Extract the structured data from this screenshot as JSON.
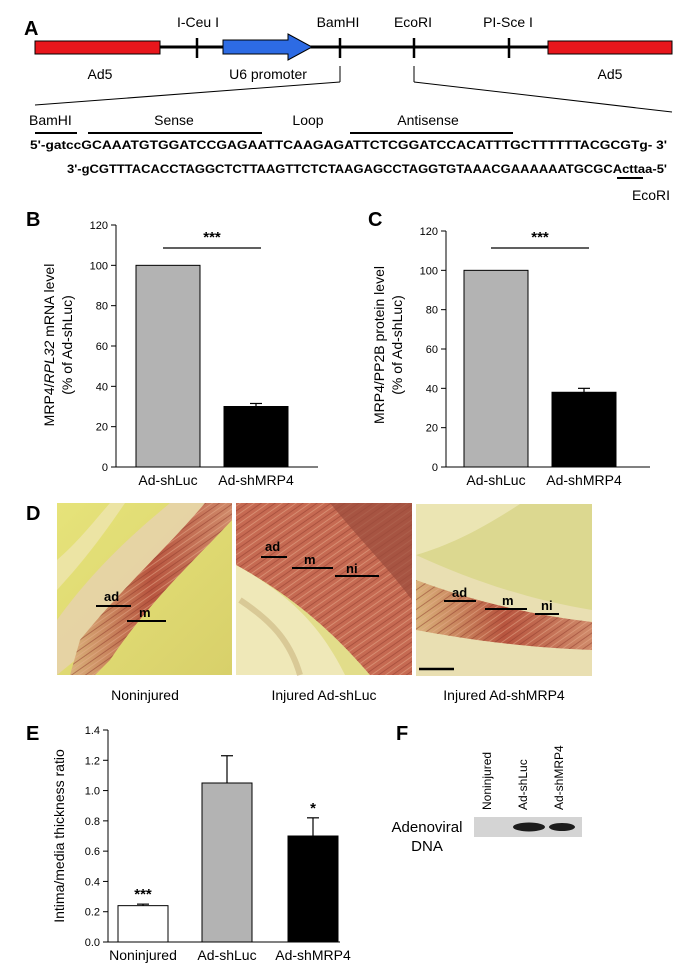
{
  "panels": {
    "a": "A",
    "b": "B",
    "c": "C",
    "d": "D",
    "e": "E",
    "f": "F"
  },
  "construct": {
    "ad5_left": "Ad5",
    "ad5_right": "Ad5",
    "promoter": "U6 promoter",
    "sites": [
      "I-Ceu I",
      "BamHI",
      "EcoRI",
      "PI-Sce I"
    ],
    "colors": {
      "ad5": "#e8161c",
      "promoter": "#2d6be4"
    }
  },
  "insert": {
    "bamhi": "BamHI",
    "sense": "Sense",
    "loop": "Loop",
    "antisense": "Antisense",
    "top_strand": "5'-gatccGCAAATGTGGATCCGAGAATTCAAGAGATTCTCGGATCCACATTTGCTTTTTTACGCGTg- 3'",
    "bottom_prefix": "3'-gCGTTTACACCTAGGCTCTTAAGTTCTCTAAGAGCCTAGGTGTAAACGAAAAAATGCGCA",
    "bottom_site": "cttaa",
    "bottom_suffix": "-5'",
    "ecori": "EcoRI"
  },
  "chart_data": [
    {
      "id": "B",
      "type": "bar",
      "categories": [
        "Ad-shLuc",
        "Ad-shMRP4"
      ],
      "values": [
        100,
        30
      ],
      "errors": [
        0,
        1.5
      ],
      "colors": [
        "#b3b3b3",
        "#000000"
      ],
      "ylabel_line1_a": "MRP4/",
      "ylabel_line1_b": "RPL32",
      "ylabel_line1_c": " mRNA level",
      "ylabel_line2": "(% of Ad-shLuc)",
      "ylim": [
        0,
        120
      ],
      "yticks": [
        "0",
        "20",
        "40",
        "60",
        "80",
        "100",
        "120"
      ],
      "significance": "***"
    },
    {
      "id": "C",
      "type": "bar",
      "categories": [
        "Ad-shLuc",
        "Ad-shMRP4"
      ],
      "values": [
        100,
        38
      ],
      "errors": [
        0,
        2
      ],
      "colors": [
        "#b3b3b3",
        "#000000"
      ],
      "ylabel_line1": "MRP4/PP2B protein level",
      "ylabel_line2": "(% of Ad-shLuc)",
      "ylim": [
        0,
        120
      ],
      "yticks": [
        "0",
        "20",
        "40",
        "60",
        "80",
        "100",
        "120"
      ],
      "significance": "***"
    },
    {
      "id": "E",
      "type": "bar",
      "categories": [
        "Noninjured",
        "Ad-shLuc",
        "Ad-shMRP4"
      ],
      "values": [
        0.24,
        1.05,
        0.7
      ],
      "errors": [
        0.01,
        0.18,
        0.12
      ],
      "colors": [
        "#ffffff",
        "#b3b3b3",
        "#000000"
      ],
      "ylabel": "Intima/media thickness ratio",
      "ylim": [
        0,
        1.4
      ],
      "yticks": [
        "0.0",
        "0.2",
        "0.4",
        "0.6",
        "0.8",
        "1.0",
        "1.2",
        "1.4"
      ],
      "annotations": [
        "***",
        "",
        "*"
      ]
    }
  ],
  "histology": {
    "captions": [
      "Noninjured",
      "Injured Ad-shLuc",
      "Injured Ad-shMRP4"
    ],
    "labels": [
      [
        "ad",
        "m"
      ],
      [
        "ad",
        "m",
        "ni"
      ],
      [
        "ad",
        "m",
        "ni"
      ]
    ]
  },
  "blot": {
    "lanes": [
      "Noninjured",
      "Ad-shLuc",
      "Ad-shMRP4"
    ],
    "row_label_1": "Adenoviral",
    "row_label_2": "DNA"
  }
}
